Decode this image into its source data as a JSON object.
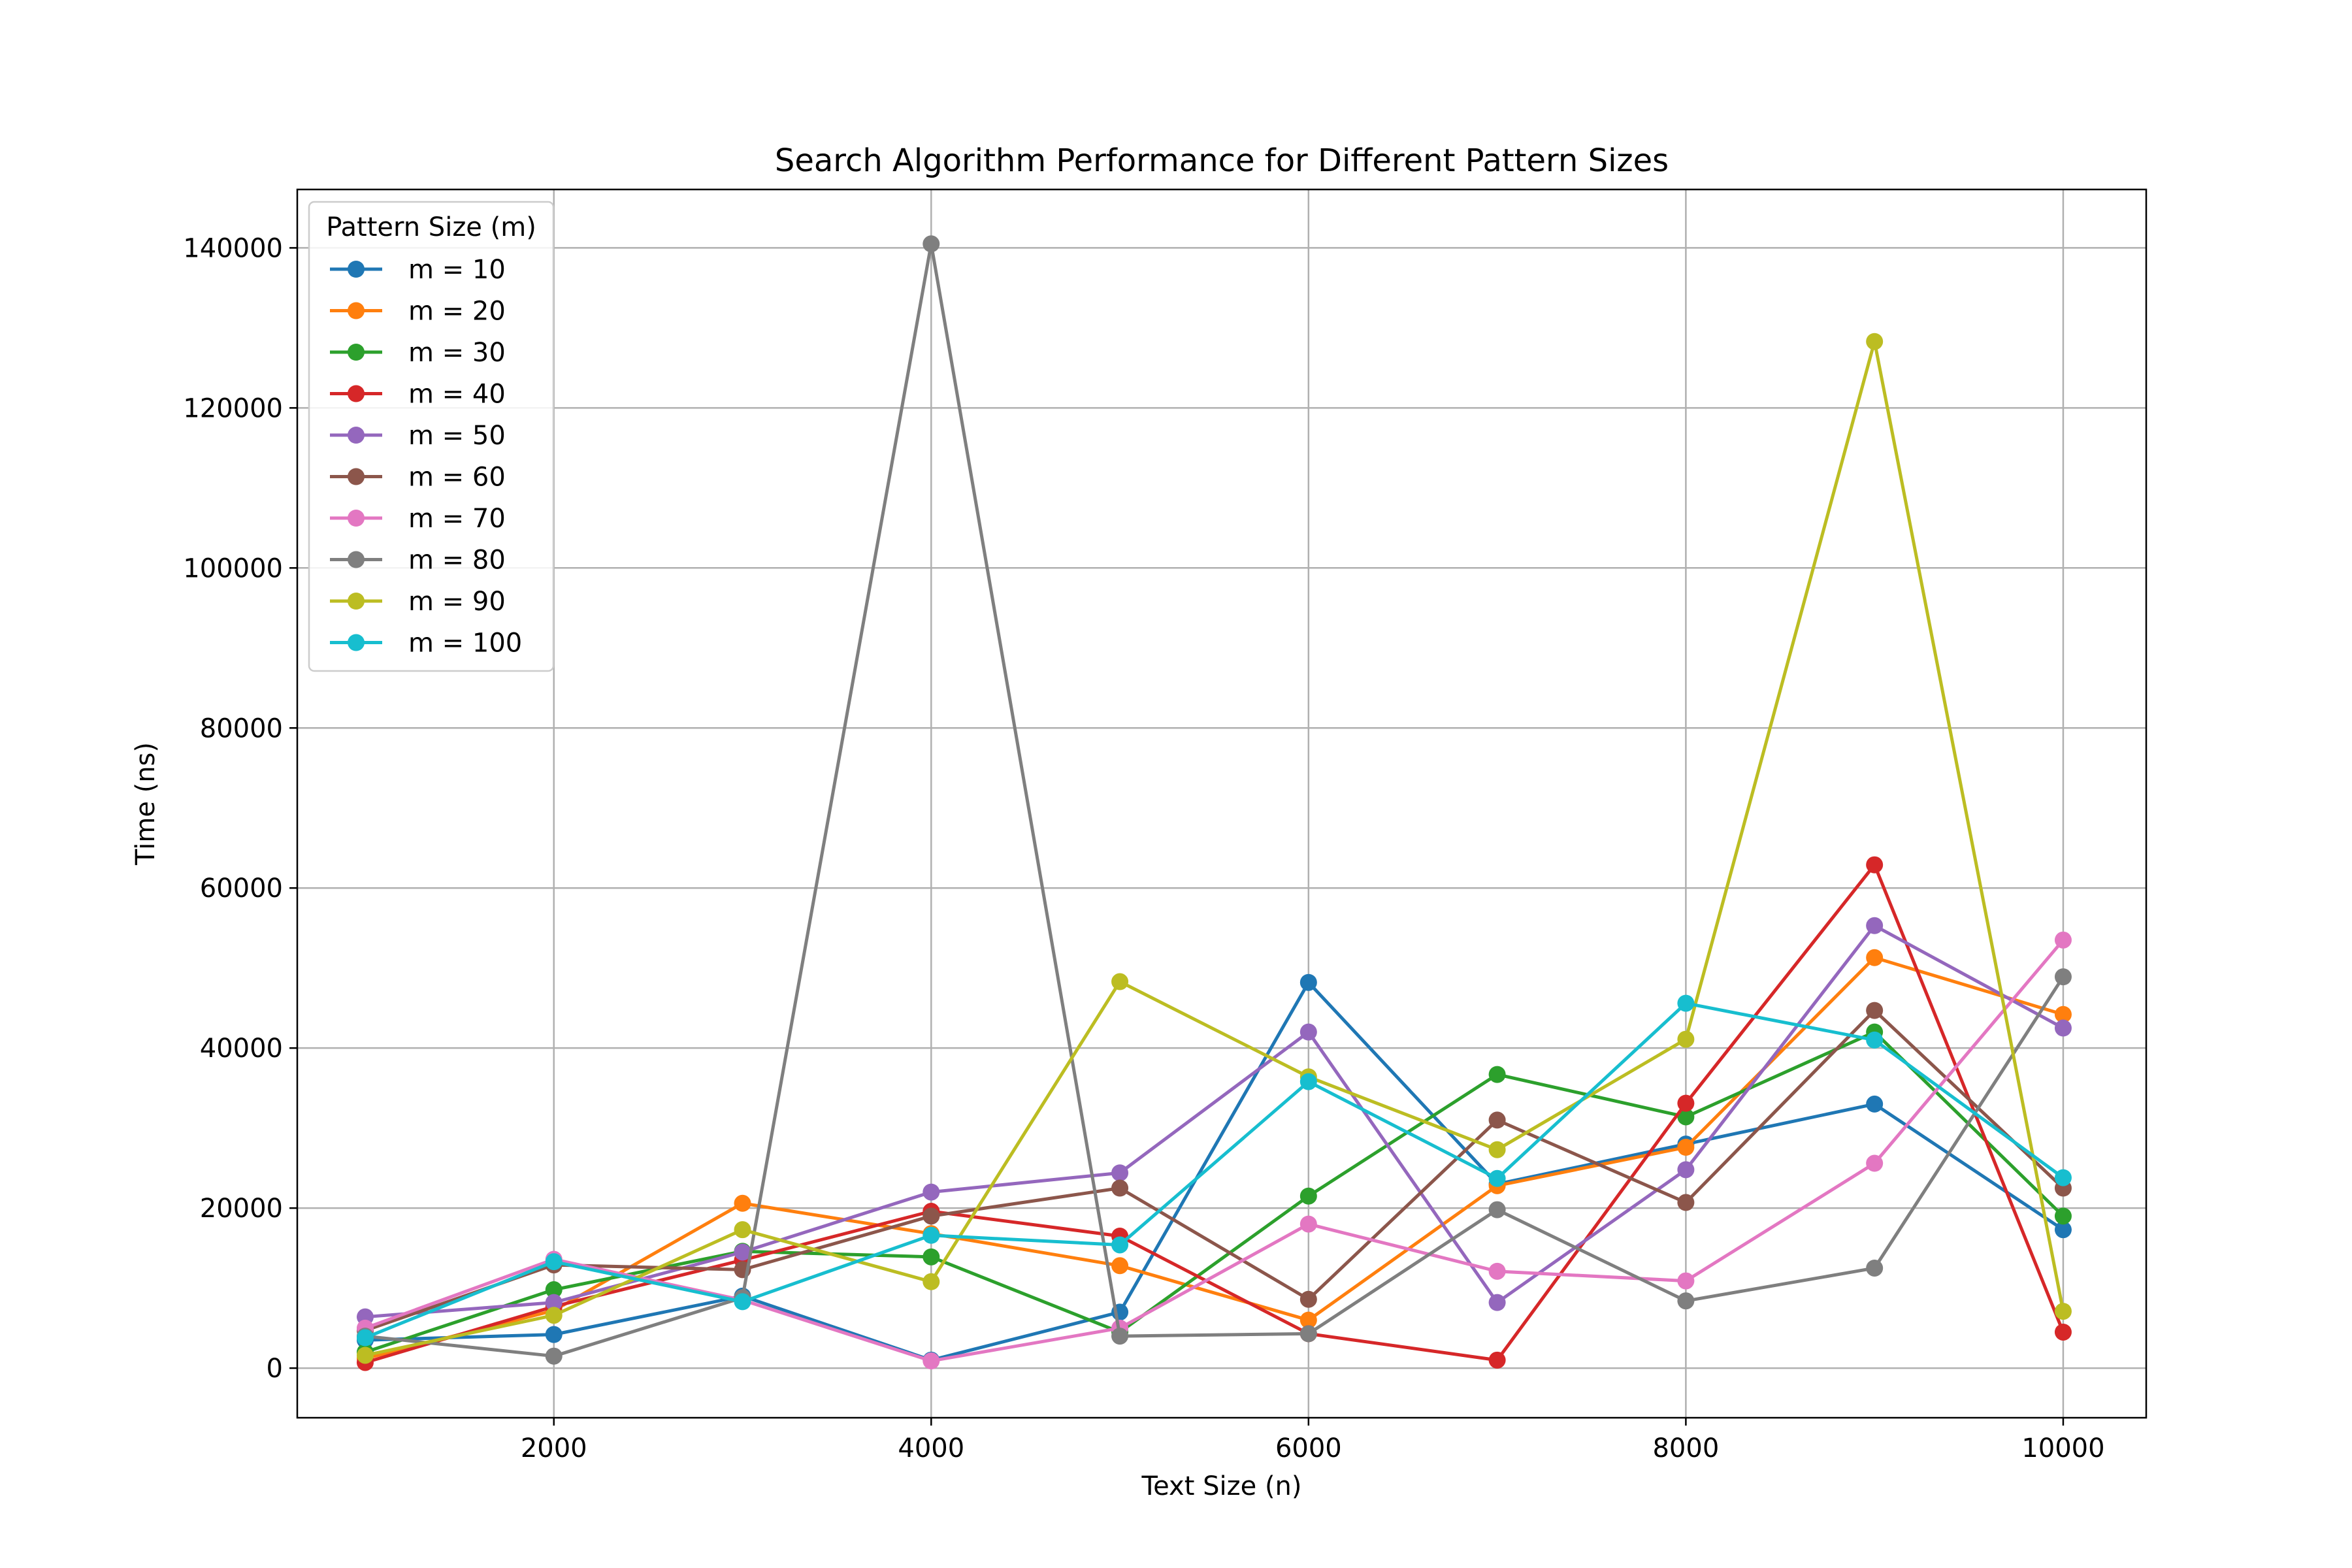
{
  "chart_data": {
    "type": "line",
    "title": "Search Algorithm Performance for Different Pattern Sizes",
    "xlabel": "Text Size (n)",
    "ylabel": "Time (ns)",
    "x": [
      1000,
      2000,
      3000,
      4000,
      5000,
      6000,
      7000,
      8000,
      9000,
      10000
    ],
    "xlim": [
      640,
      10440
    ],
    "ylim": [
      -6200,
      147300
    ],
    "xticks": [
      2000,
      4000,
      6000,
      8000,
      10000
    ],
    "yticks": [
      0,
      20000,
      40000,
      60000,
      80000,
      100000,
      120000,
      140000
    ],
    "grid": true,
    "legend": {
      "title": "Pattern Size (m)",
      "placement": "upper-left"
    },
    "series": [
      {
        "name": "m = 10",
        "color": "#1f77b4",
        "values": [
          3500,
          4200,
          9000,
          1000,
          7000,
          48200,
          23000,
          28000,
          33000,
          17300
        ]
      },
      {
        "name": "m = 20",
        "color": "#ff7f0e",
        "values": [
          1200,
          7200,
          20600,
          16800,
          12800,
          6000,
          22800,
          27600,
          51300,
          44200
        ]
      },
      {
        "name": "m = 30",
        "color": "#2ca02c",
        "values": [
          2000,
          9800,
          14600,
          13900,
          4500,
          21500,
          36700,
          31400,
          42000,
          19000
        ]
      },
      {
        "name": "m = 40",
        "color": "#d62728",
        "values": [
          700,
          7700,
          13500,
          19600,
          16500,
          4300,
          1000,
          33100,
          62900,
          4500
        ]
      },
      {
        "name": "m = 50",
        "color": "#9467bd",
        "values": [
          6400,
          8200,
          14500,
          22000,
          24400,
          42000,
          8200,
          24800,
          55300,
          42500
        ]
      },
      {
        "name": "m = 60",
        "color": "#8c564b",
        "values": [
          4700,
          12900,
          12300,
          19000,
          22500,
          8600,
          31000,
          20700,
          44700,
          22500
        ]
      },
      {
        "name": "m = 70",
        "color": "#e377c2",
        "values": [
          5000,
          13600,
          8500,
          900,
          5000,
          18000,
          12100,
          10900,
          25600,
          53500
        ]
      },
      {
        "name": "m = 80",
        "color": "#7f7f7f",
        "values": [
          4000,
          1500,
          8800,
          140500,
          4000,
          4300,
          19800,
          8400,
          12500,
          48900
        ]
      },
      {
        "name": "m = 90",
        "color": "#bcbd22",
        "values": [
          1600,
          6600,
          17300,
          10800,
          48300,
          36400,
          27300,
          41100,
          128300,
          7100
        ]
      },
      {
        "name": "m = 100",
        "color": "#17becf",
        "values": [
          3800,
          13300,
          8300,
          16600,
          15400,
          35800,
          23700,
          45600,
          41000,
          23800
        ]
      }
    ]
  }
}
